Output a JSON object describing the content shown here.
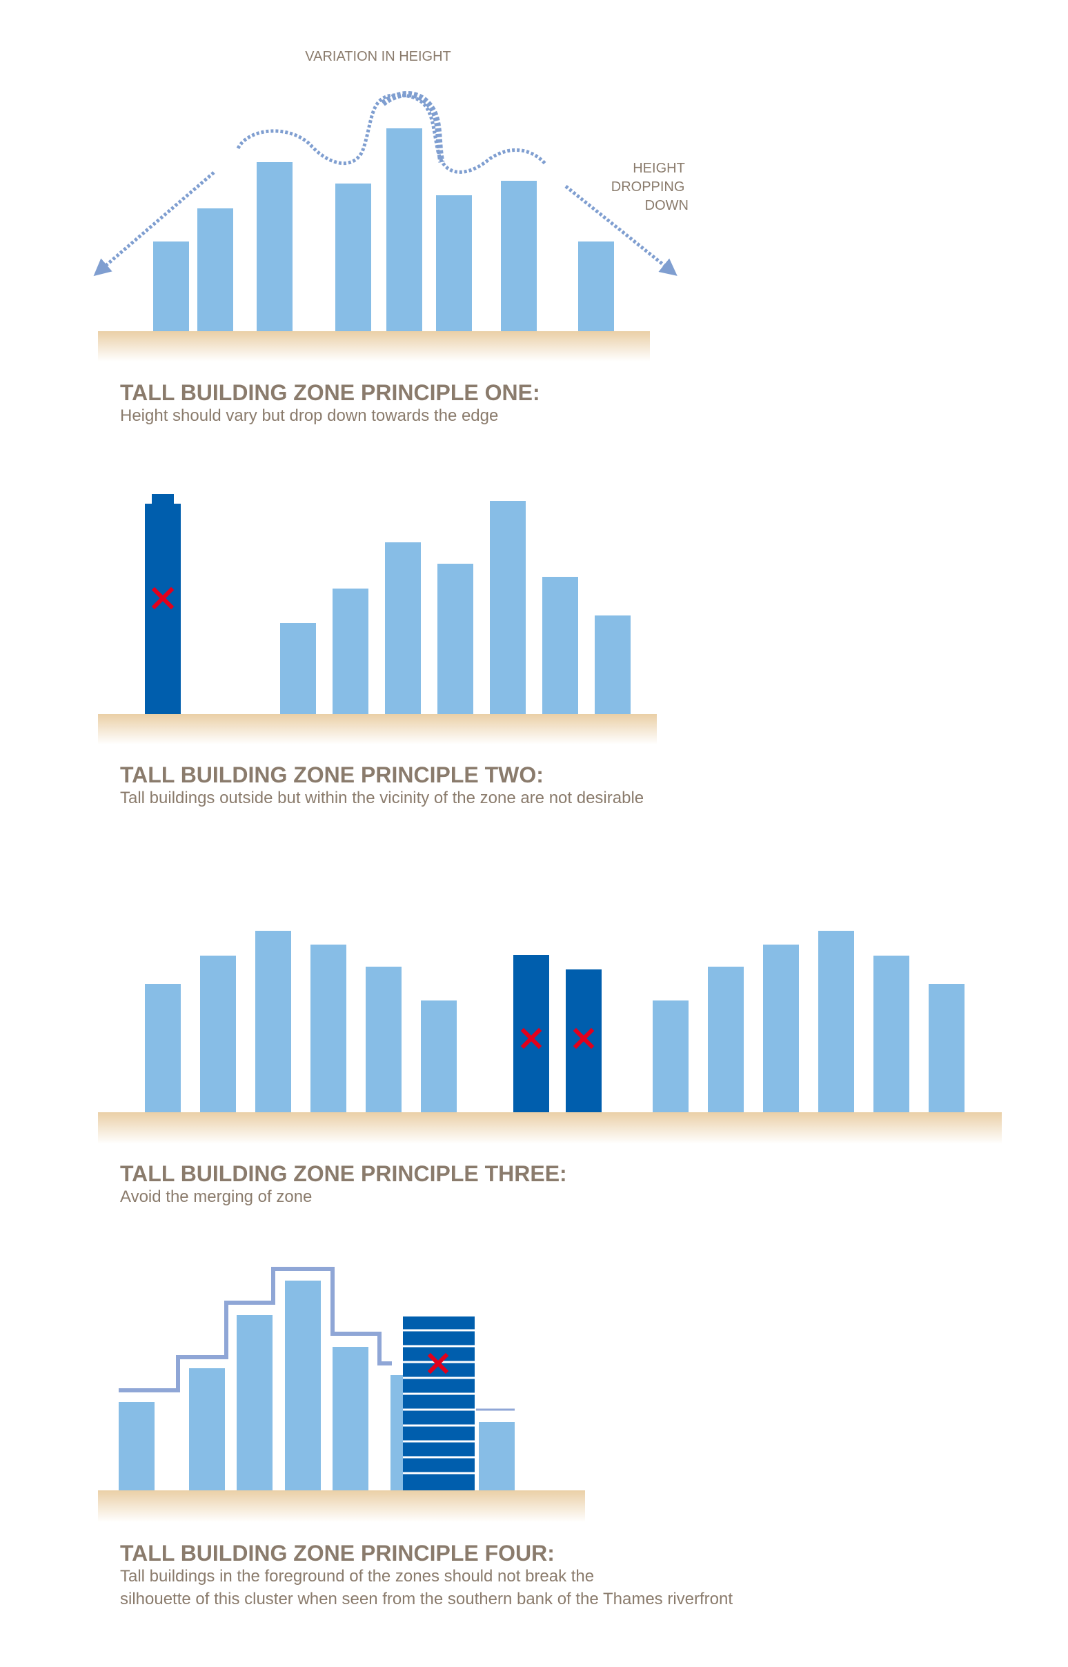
{
  "colors": {
    "light_building": "#87BDE6",
    "dark_building": "#005EAD",
    "ground": "#EACFA6",
    "cross": "#E3001B",
    "text": "#8A7B6C",
    "dotted_line": "#7F9ED0",
    "silhouette": "#8FA6D6"
  },
  "principles": [
    {
      "title": "TALL BUILDING ZONE PRINCIPLE ONE:",
      "description": [
        "Height should vary but drop down towards the edge"
      ],
      "labels": {
        "variation": "VARIATION IN HEIGHT",
        "dropping": [
          "HEIGHT",
          "DROPPING",
          "DOWN"
        ]
      }
    },
    {
      "title": "TALL BUILDING ZONE PRINCIPLE TWO:",
      "description": [
        "Tall buildings outside but within the vicinity of the zone are not desirable"
      ]
    },
    {
      "title": "TALL BUILDING ZONE PRINCIPLE THREE:",
      "description": [
        "Avoid the merging of zone"
      ]
    },
    {
      "title": "TALL BUILDING ZONE PRINCIPLE FOUR:",
      "description": [
        "Tall buildings in the foreground of the zones should not break the",
        "silhouette of this cluster when seen from the southern bank of the Thames riverfront"
      ]
    }
  ]
}
